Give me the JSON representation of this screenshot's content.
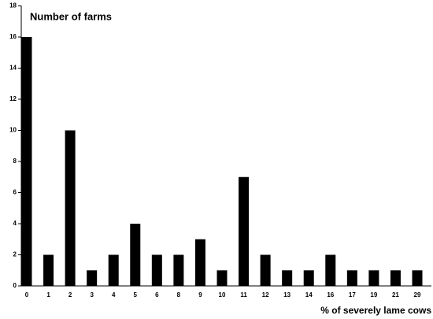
{
  "chart_data": {
    "type": "bar",
    "title": "Number of farms",
    "x_label": "% of severely lame cows",
    "categories": [
      "0",
      "1",
      "2",
      "3",
      "4",
      "5",
      "6",
      "8",
      "9",
      "10",
      "11",
      "12",
      "13",
      "14",
      "16",
      "17",
      "19",
      "21",
      "29"
    ],
    "values": [
      16,
      2,
      10,
      1,
      2,
      4,
      2,
      2,
      3,
      1,
      7,
      2,
      1,
      1,
      2,
      1,
      1,
      1,
      1
    ],
    "color": "#000000",
    "ylim": [
      0,
      18
    ],
    "yticks": [
      0,
      2,
      4,
      6,
      8,
      10,
      12,
      14,
      16,
      18
    ],
    "grid": false
  }
}
